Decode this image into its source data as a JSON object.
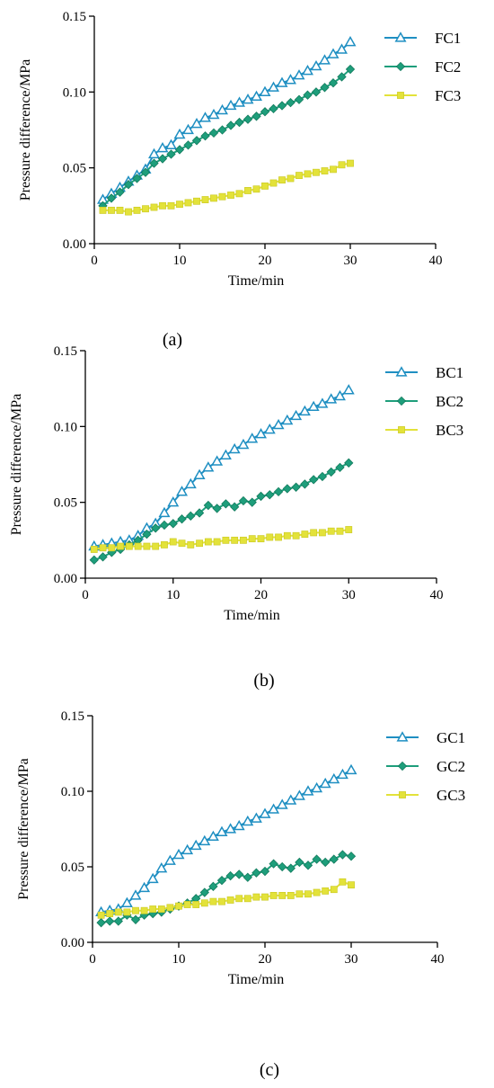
{
  "colors": {
    "series1": "#1f8fc2",
    "series2": "#1e9e7b",
    "series3": "#e3e23a",
    "axis": "#000000"
  },
  "chart_data": [
    {
      "type": "line",
      "panel_label": "(a)",
      "xlabel": "Time/min",
      "ylabel": "Pressure difference/MPa",
      "xlim": [
        0,
        40
      ],
      "ylim": [
        0,
        0.15
      ],
      "xticks": [
        "0",
        "10",
        "20",
        "30",
        "40"
      ],
      "yticks": [
        "0.00",
        "0.05",
        "0.10",
        "0.15"
      ],
      "grid": false,
      "legend_position": "top-right",
      "x": [
        1,
        2,
        3,
        4,
        5,
        6,
        7,
        8,
        9,
        10,
        11,
        12,
        13,
        14,
        15,
        16,
        17,
        18,
        19,
        20,
        21,
        22,
        23,
        24,
        25,
        26,
        27,
        28,
        29,
        30
      ],
      "series": [
        {
          "name": "FC1",
          "marker": "triangle-open",
          "values": [
            0.029,
            0.033,
            0.037,
            0.041,
            0.045,
            0.049,
            0.059,
            0.063,
            0.065,
            0.072,
            0.075,
            0.079,
            0.083,
            0.085,
            0.088,
            0.091,
            0.093,
            0.095,
            0.097,
            0.1,
            0.103,
            0.106,
            0.108,
            0.111,
            0.114,
            0.117,
            0.121,
            0.125,
            0.128,
            0.133
          ]
        },
        {
          "name": "FC2",
          "marker": "diamond-filled",
          "values": [
            0.025,
            0.03,
            0.034,
            0.039,
            0.043,
            0.047,
            0.053,
            0.056,
            0.059,
            0.062,
            0.065,
            0.068,
            0.071,
            0.073,
            0.075,
            0.078,
            0.08,
            0.082,
            0.084,
            0.087,
            0.089,
            0.091,
            0.093,
            0.095,
            0.098,
            0.1,
            0.103,
            0.106,
            0.11,
            0.115
          ]
        },
        {
          "name": "FC3",
          "marker": "square-filled",
          "values": [
            0.022,
            0.022,
            0.022,
            0.021,
            0.022,
            0.023,
            0.024,
            0.025,
            0.025,
            0.026,
            0.027,
            0.028,
            0.029,
            0.03,
            0.031,
            0.032,
            0.033,
            0.035,
            0.036,
            0.038,
            0.04,
            0.042,
            0.043,
            0.045,
            0.046,
            0.047,
            0.048,
            0.049,
            0.052,
            0.053
          ]
        }
      ]
    },
    {
      "type": "line",
      "panel_label": "(b)",
      "xlabel": "Time/min",
      "ylabel": "Pressure difference/MPa",
      "xlim": [
        0,
        40
      ],
      "ylim": [
        0,
        0.15
      ],
      "xticks": [
        "0",
        "10",
        "20",
        "30",
        "40"
      ],
      "yticks": [
        "0.00",
        "0.05",
        "0.10",
        "0.15"
      ],
      "grid": false,
      "legend_position": "top-right",
      "x": [
        1,
        2,
        3,
        4,
        5,
        6,
        7,
        8,
        9,
        10,
        11,
        12,
        13,
        14,
        15,
        16,
        17,
        18,
        19,
        20,
        21,
        22,
        23,
        24,
        25,
        26,
        27,
        28,
        29,
        30
      ],
      "series": [
        {
          "name": "BC1",
          "marker": "triangle-open",
          "values": [
            0.021,
            0.022,
            0.023,
            0.024,
            0.025,
            0.028,
            0.033,
            0.036,
            0.043,
            0.05,
            0.057,
            0.062,
            0.068,
            0.073,
            0.077,
            0.081,
            0.085,
            0.088,
            0.092,
            0.095,
            0.098,
            0.101,
            0.104,
            0.107,
            0.11,
            0.113,
            0.115,
            0.118,
            0.12,
            0.124
          ]
        },
        {
          "name": "BC2",
          "marker": "diamond-filled",
          "values": [
            0.012,
            0.014,
            0.017,
            0.019,
            0.022,
            0.025,
            0.029,
            0.033,
            0.035,
            0.036,
            0.039,
            0.041,
            0.043,
            0.048,
            0.046,
            0.049,
            0.047,
            0.051,
            0.05,
            0.054,
            0.055,
            0.057,
            0.059,
            0.06,
            0.062,
            0.065,
            0.067,
            0.07,
            0.073,
            0.076
          ]
        },
        {
          "name": "BC3",
          "marker": "square-filled",
          "values": [
            0.019,
            0.02,
            0.02,
            0.021,
            0.021,
            0.021,
            0.021,
            0.021,
            0.022,
            0.024,
            0.023,
            0.022,
            0.023,
            0.024,
            0.024,
            0.025,
            0.025,
            0.025,
            0.026,
            0.026,
            0.027,
            0.027,
            0.028,
            0.028,
            0.029,
            0.03,
            0.03,
            0.031,
            0.031,
            0.032
          ]
        }
      ]
    },
    {
      "type": "line",
      "panel_label": "(c)",
      "xlabel": "Time/min",
      "ylabel": "Pressure difference/MPa",
      "xlim": [
        0,
        40
      ],
      "ylim": [
        0,
        0.15
      ],
      "xticks": [
        "0",
        "10",
        "20",
        "30",
        "40"
      ],
      "yticks": [
        "0.00",
        "0.05",
        "0.10",
        "0.15"
      ],
      "grid": false,
      "legend_position": "top-right",
      "x": [
        1,
        2,
        3,
        4,
        5,
        6,
        7,
        8,
        9,
        10,
        11,
        12,
        13,
        14,
        15,
        16,
        17,
        18,
        19,
        20,
        21,
        22,
        23,
        24,
        25,
        26,
        27,
        28,
        29,
        30
      ],
      "series": [
        {
          "name": "GC1",
          "marker": "triangle-open",
          "values": [
            0.02,
            0.021,
            0.022,
            0.026,
            0.031,
            0.036,
            0.042,
            0.049,
            0.054,
            0.058,
            0.061,
            0.064,
            0.067,
            0.07,
            0.073,
            0.075,
            0.077,
            0.08,
            0.082,
            0.085,
            0.088,
            0.091,
            0.094,
            0.097,
            0.1,
            0.102,
            0.105,
            0.108,
            0.111,
            0.114
          ]
        },
        {
          "name": "GC2",
          "marker": "diamond-filled",
          "values": [
            0.013,
            0.014,
            0.014,
            0.018,
            0.015,
            0.018,
            0.019,
            0.02,
            0.022,
            0.024,
            0.026,
            0.029,
            0.033,
            0.037,
            0.041,
            0.044,
            0.045,
            0.043,
            0.046,
            0.047,
            0.052,
            0.05,
            0.049,
            0.053,
            0.051,
            0.055,
            0.053,
            0.055,
            0.058,
            0.057
          ]
        },
        {
          "name": "GC3",
          "marker": "square-filled",
          "values": [
            0.018,
            0.019,
            0.02,
            0.02,
            0.021,
            0.021,
            0.022,
            0.022,
            0.023,
            0.024,
            0.025,
            0.025,
            0.026,
            0.027,
            0.027,
            0.028,
            0.029,
            0.029,
            0.03,
            0.03,
            0.031,
            0.031,
            0.031,
            0.032,
            0.032,
            0.033,
            0.034,
            0.035,
            0.04,
            0.038
          ]
        }
      ]
    }
  ]
}
